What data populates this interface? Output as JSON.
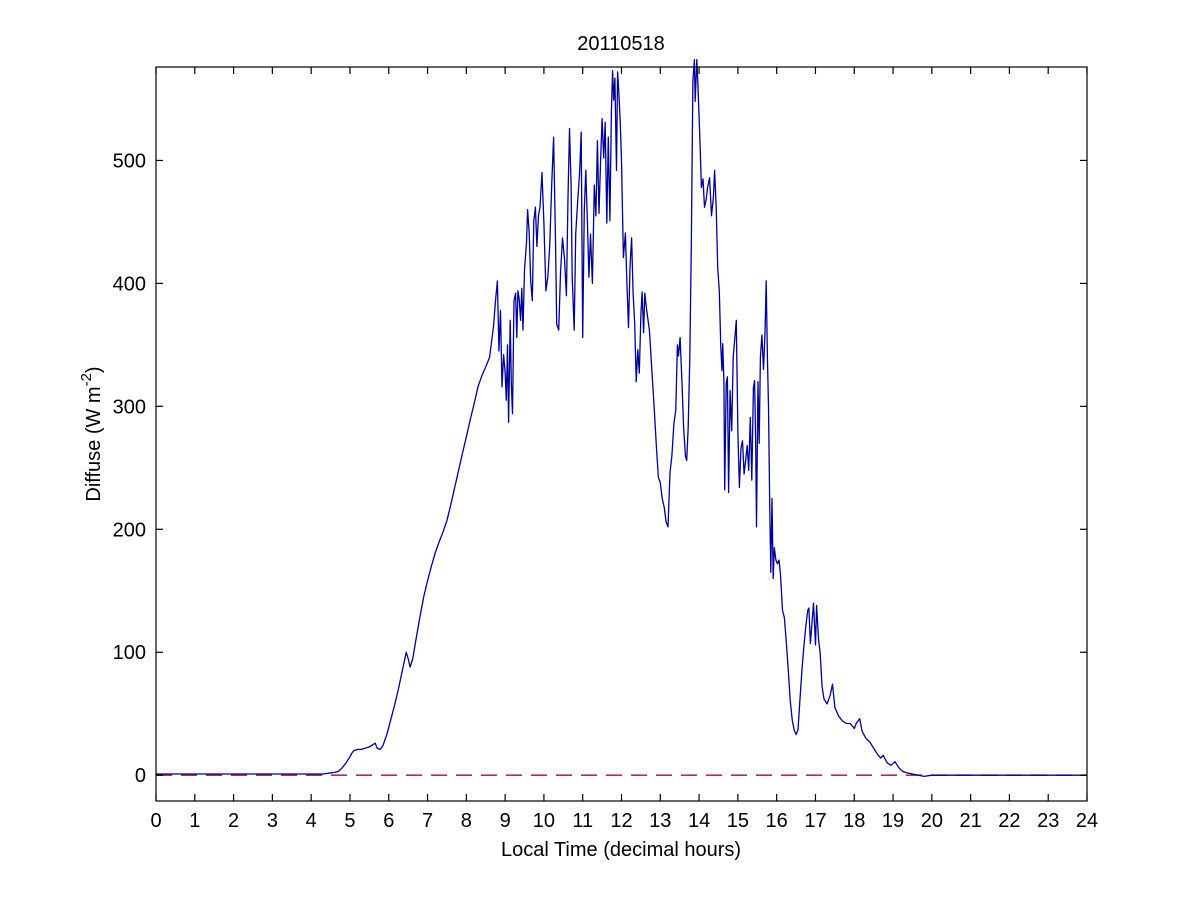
{
  "chart_data": {
    "type": "line",
    "title": "20110518",
    "xlabel": "Local Time (decimal hours)",
    "ylabel_main": "Diffuse (W m",
    "ylabel_sup": "-2",
    "ylabel_close": ")",
    "xlim": [
      0,
      24
    ],
    "ylim": [
      -21,
      576
    ],
    "xticks": [
      0,
      1,
      2,
      3,
      4,
      5,
      6,
      7,
      8,
      9,
      10,
      11,
      12,
      13,
      14,
      15,
      16,
      17,
      18,
      19,
      20,
      21,
      22,
      23,
      24
    ],
    "yticks": [
      0,
      100,
      200,
      300,
      400,
      500
    ],
    "grid": false,
    "legend": "none",
    "axis_color": "#000000",
    "background_color": "#ffffff",
    "series": [
      {
        "name": "diffuse-irradiance",
        "color": "#000099",
        "style": "solid",
        "points": [
          [
            0,
            1
          ],
          [
            0.5,
            1
          ],
          [
            1,
            1
          ],
          [
            1.5,
            1
          ],
          [
            2,
            1
          ],
          [
            2.5,
            1
          ],
          [
            3,
            1
          ],
          [
            3.5,
            1
          ],
          [
            4,
            1
          ],
          [
            4.3,
            1
          ],
          [
            4.55,
            2
          ],
          [
            4.7,
            3
          ],
          [
            4.8,
            6
          ],
          [
            4.9,
            10
          ],
          [
            5.0,
            15
          ],
          [
            5.05,
            18
          ],
          [
            5.1,
            20
          ],
          [
            5.2,
            21
          ],
          [
            5.3,
            21
          ],
          [
            5.4,
            22
          ],
          [
            5.5,
            23
          ],
          [
            5.6,
            25
          ],
          [
            5.65,
            26
          ],
          [
            5.7,
            22
          ],
          [
            5.78,
            21
          ],
          [
            5.85,
            24
          ],
          [
            5.95,
            33
          ],
          [
            6.05,
            45
          ],
          [
            6.15,
            57
          ],
          [
            6.25,
            70
          ],
          [
            6.35,
            85
          ],
          [
            6.45,
            100
          ],
          [
            6.5,
            95
          ],
          [
            6.55,
            88
          ],
          [
            6.62,
            95
          ],
          [
            6.7,
            110
          ],
          [
            6.8,
            128
          ],
          [
            6.9,
            145
          ],
          [
            7.0,
            158
          ],
          [
            7.1,
            170
          ],
          [
            7.2,
            181
          ],
          [
            7.3,
            190
          ],
          [
            7.4,
            198
          ],
          [
            7.5,
            207
          ],
          [
            7.6,
            220
          ],
          [
            7.7,
            234
          ],
          [
            7.8,
            248
          ],
          [
            7.9,
            262
          ],
          [
            8.0,
            275
          ],
          [
            8.1,
            289
          ],
          [
            8.2,
            302
          ],
          [
            8.3,
            316
          ],
          [
            8.4,
            325
          ],
          [
            8.5,
            332
          ],
          [
            8.6,
            340
          ],
          [
            8.7,
            365
          ],
          [
            8.75,
            385
          ],
          [
            8.8,
            402
          ],
          [
            8.84,
            345
          ],
          [
            8.88,
            378
          ],
          [
            8.92,
            316
          ],
          [
            8.96,
            342
          ],
          [
            9.0,
            328
          ],
          [
            9.03,
            305
          ],
          [
            9.06,
            350
          ],
          [
            9.09,
            287
          ],
          [
            9.13,
            370
          ],
          [
            9.16,
            319
          ],
          [
            9.19,
            294
          ],
          [
            9.23,
            386
          ],
          [
            9.27,
            392
          ],
          [
            9.3,
            356
          ],
          [
            9.33,
            394
          ],
          [
            9.36,
            388
          ],
          [
            9.4,
            370
          ],
          [
            9.43,
            396
          ],
          [
            9.46,
            362
          ],
          [
            9.5,
            411
          ],
          [
            9.55,
            433
          ],
          [
            9.58,
            460
          ],
          [
            9.62,
            441
          ],
          [
            9.66,
            402
          ],
          [
            9.7,
            386
          ],
          [
            9.74,
            451
          ],
          [
            9.78,
            462
          ],
          [
            9.82,
            430
          ],
          [
            9.86,
            455
          ],
          [
            9.9,
            462
          ],
          [
            9.95,
            490
          ],
          [
            10.0,
            449
          ],
          [
            10.05,
            394
          ],
          [
            10.1,
            405
          ],
          [
            10.15,
            430
          ],
          [
            10.2,
            480
          ],
          [
            10.25,
            519
          ],
          [
            10.3,
            430
          ],
          [
            10.33,
            367
          ],
          [
            10.38,
            362
          ],
          [
            10.43,
            410
          ],
          [
            10.48,
            437
          ],
          [
            10.53,
            420
          ],
          [
            10.58,
            390
          ],
          [
            10.62,
            470
          ],
          [
            10.66,
            526
          ],
          [
            10.7,
            480
          ],
          [
            10.73,
            405
          ],
          [
            10.78,
            362
          ],
          [
            10.82,
            440
          ],
          [
            10.87,
            467
          ],
          [
            10.92,
            490
          ],
          [
            10.96,
            523
          ],
          [
            11.0,
            356
          ],
          [
            11.04,
            460
          ],
          [
            11.08,
            492
          ],
          [
            11.12,
            450
          ],
          [
            11.16,
            405
          ],
          [
            11.2,
            440
          ],
          [
            11.25,
            400
          ],
          [
            11.3,
            480
          ],
          [
            11.34,
            455
          ],
          [
            11.38,
            516
          ],
          [
            11.42,
            457
          ],
          [
            11.46,
            500
          ],
          [
            11.5,
            534
          ],
          [
            11.54,
            502
          ],
          [
            11.58,
            531
          ],
          [
            11.62,
            449
          ],
          [
            11.66,
            519
          ],
          [
            11.7,
            451
          ],
          [
            11.74,
            540
          ],
          [
            11.77,
            573
          ],
          [
            11.8,
            549
          ],
          [
            11.83,
            567
          ],
          [
            11.87,
            492
          ],
          [
            11.9,
            572
          ],
          [
            11.93,
            556
          ],
          [
            11.97,
            530
          ],
          [
            12.0,
            500
          ],
          [
            12.05,
            421
          ],
          [
            12.1,
            441
          ],
          [
            12.14,
            400
          ],
          [
            12.18,
            364
          ],
          [
            12.22,
            413
          ],
          [
            12.26,
            437
          ],
          [
            12.3,
            392
          ],
          [
            12.34,
            367
          ],
          [
            12.38,
            320
          ],
          [
            12.42,
            346
          ],
          [
            12.46,
            327
          ],
          [
            12.5,
            375
          ],
          [
            12.53,
            393
          ],
          [
            12.57,
            360
          ],
          [
            12.6,
            392
          ],
          [
            12.65,
            378
          ],
          [
            12.72,
            362
          ],
          [
            12.78,
            330
          ],
          [
            12.84,
            300
          ],
          [
            12.9,
            267
          ],
          [
            12.95,
            242
          ],
          [
            13.0,
            238
          ],
          [
            13.05,
            225
          ],
          [
            13.1,
            218
          ],
          [
            13.15,
            206
          ],
          [
            13.2,
            202
          ],
          [
            13.25,
            246
          ],
          [
            13.3,
            260
          ],
          [
            13.35,
            286
          ],
          [
            13.4,
            297
          ],
          [
            13.44,
            350
          ],
          [
            13.47,
            341
          ],
          [
            13.51,
            356
          ],
          [
            13.56,
            319
          ],
          [
            13.6,
            283
          ],
          [
            13.65,
            259
          ],
          [
            13.68,
            256
          ],
          [
            13.72,
            283
          ],
          [
            13.76,
            340
          ],
          [
            13.8,
            430
          ],
          [
            13.84,
            565
          ],
          [
            13.88,
            582
          ],
          [
            13.9,
            548
          ],
          [
            13.94,
            582
          ],
          [
            13.97,
            562
          ],
          [
            14.0,
            535
          ],
          [
            14.03,
            510
          ],
          [
            14.06,
            478
          ],
          [
            14.1,
            485
          ],
          [
            14.14,
            462
          ],
          [
            14.18,
            468
          ],
          [
            14.22,
            478
          ],
          [
            14.27,
            486
          ],
          [
            14.32,
            455
          ],
          [
            14.37,
            470
          ],
          [
            14.4,
            492
          ],
          [
            14.44,
            462
          ],
          [
            14.48,
            413
          ],
          [
            14.52,
            394
          ],
          [
            14.56,
            348
          ],
          [
            14.59,
            329
          ],
          [
            14.61,
            351
          ],
          [
            14.64,
            321
          ],
          [
            14.66,
            232
          ],
          [
            14.7,
            319
          ],
          [
            14.73,
            324
          ],
          [
            14.76,
            230
          ],
          [
            14.8,
            313
          ],
          [
            14.84,
            280
          ],
          [
            14.88,
            340
          ],
          [
            14.92,
            355
          ],
          [
            14.96,
            370
          ],
          [
            15.0,
            278
          ],
          [
            15.04,
            234
          ],
          [
            15.08,
            266
          ],
          [
            15.12,
            272
          ],
          [
            15.16,
            245
          ],
          [
            15.2,
            256
          ],
          [
            15.24,
            268
          ],
          [
            15.28,
            248
          ],
          [
            15.32,
            291
          ],
          [
            15.36,
            240
          ],
          [
            15.4,
            315
          ],
          [
            15.43,
            321
          ],
          [
            15.46,
            270
          ],
          [
            15.48,
            202
          ],
          [
            15.52,
            320
          ],
          [
            15.55,
            270
          ],
          [
            15.58,
            340
          ],
          [
            15.62,
            358
          ],
          [
            15.66,
            330
          ],
          [
            15.7,
            360
          ],
          [
            15.73,
            402
          ],
          [
            15.76,
            340
          ],
          [
            15.79,
            300
          ],
          [
            15.82,
            221
          ],
          [
            15.85,
            165
          ],
          [
            15.88,
            225
          ],
          [
            15.91,
            160
          ],
          [
            15.94,
            185
          ],
          [
            15.98,
            175
          ],
          [
            16.02,
            172
          ],
          [
            16.06,
            175
          ],
          [
            16.1,
            163
          ],
          [
            16.15,
            134
          ],
          [
            16.2,
            128
          ],
          [
            16.25,
            107
          ],
          [
            16.3,
            85
          ],
          [
            16.35,
            61
          ],
          [
            16.4,
            45
          ],
          [
            16.45,
            37
          ],
          [
            16.5,
            33
          ],
          [
            16.55,
            37
          ],
          [
            16.6,
            61
          ],
          [
            16.65,
            85
          ],
          [
            16.7,
            104
          ],
          [
            16.75,
            121
          ],
          [
            16.8,
            134
          ],
          [
            16.83,
            136
          ],
          [
            16.87,
            107
          ],
          [
            16.92,
            128
          ],
          [
            16.95,
            140
          ],
          [
            17.0,
            106
          ],
          [
            17.03,
            138
          ],
          [
            17.08,
            110
          ],
          [
            17.12,
            100
          ],
          [
            17.17,
            72
          ],
          [
            17.22,
            62
          ],
          [
            17.3,
            58
          ],
          [
            17.38,
            65
          ],
          [
            17.44,
            74
          ],
          [
            17.5,
            55
          ],
          [
            17.6,
            48
          ],
          [
            17.7,
            44
          ],
          [
            17.8,
            42
          ],
          [
            17.9,
            42
          ],
          [
            18.0,
            38
          ],
          [
            18.05,
            42
          ],
          [
            18.14,
            46
          ],
          [
            18.2,
            36
          ],
          [
            18.3,
            30
          ],
          [
            18.4,
            27
          ],
          [
            18.5,
            22
          ],
          [
            18.6,
            17
          ],
          [
            18.68,
            14
          ],
          [
            18.75,
            16
          ],
          [
            18.85,
            10
          ],
          [
            18.95,
            8
          ],
          [
            19.05,
            11
          ],
          [
            19.15,
            6
          ],
          [
            19.25,
            3
          ],
          [
            19.35,
            2
          ],
          [
            19.5,
            1
          ],
          [
            19.65,
            0
          ],
          [
            19.8,
            -1
          ],
          [
            20.0,
            0
          ],
          [
            20.5,
            0
          ],
          [
            21,
            0
          ],
          [
            21.5,
            0
          ],
          [
            22,
            0
          ],
          [
            22.5,
            0
          ],
          [
            23,
            0
          ],
          [
            23.5,
            0
          ],
          [
            24,
            0
          ]
        ]
      }
    ],
    "reference_line": {
      "name": "zero-line",
      "color": "#b92d4b",
      "style": "dashed",
      "y": 0
    }
  }
}
